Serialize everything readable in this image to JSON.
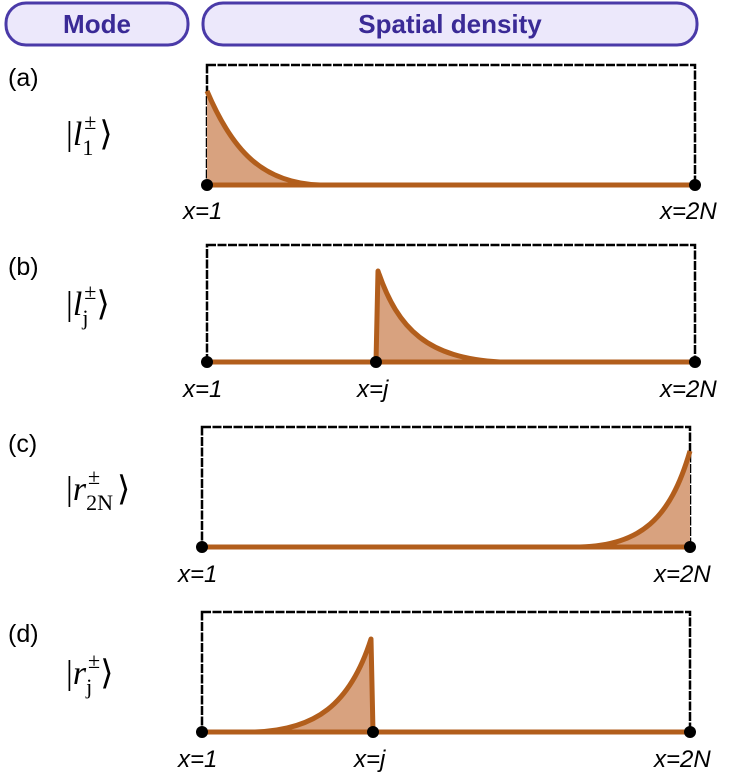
{
  "header": {
    "mode_label": "Mode",
    "density_label": "Spatial density"
  },
  "colors": {
    "header_fill": "#ece8fb",
    "header_stroke": "#4a3aa8",
    "curve": "#b25e1c",
    "fill": "#d8a27f"
  },
  "panels": [
    {
      "label": "(a)",
      "ket": {
        "symbol": "l",
        "sup": "±",
        "sub": "1"
      },
      "ticks": [
        "x=1",
        "x=2N"
      ],
      "profile": "left-edge-decay"
    },
    {
      "label": "(b)",
      "ket": {
        "symbol": "l",
        "sup": "±",
        "sub": "j"
      },
      "ticks": [
        "x=1",
        "x=j",
        "x=2N"
      ],
      "profile": "decay-right-from-j"
    },
    {
      "label": "(c)",
      "ket": {
        "symbol": "r",
        "sup": "±",
        "sub": "2N"
      },
      "ticks": [
        "x=1",
        "x=2N"
      ],
      "profile": "right-edge-decay"
    },
    {
      "label": "(d)",
      "ket": {
        "symbol": "r",
        "sup": "±",
        "sub": "j"
      },
      "ticks": [
        "x=1",
        "x=j",
        "x=2N"
      ],
      "profile": "decay-left-from-j"
    }
  ]
}
